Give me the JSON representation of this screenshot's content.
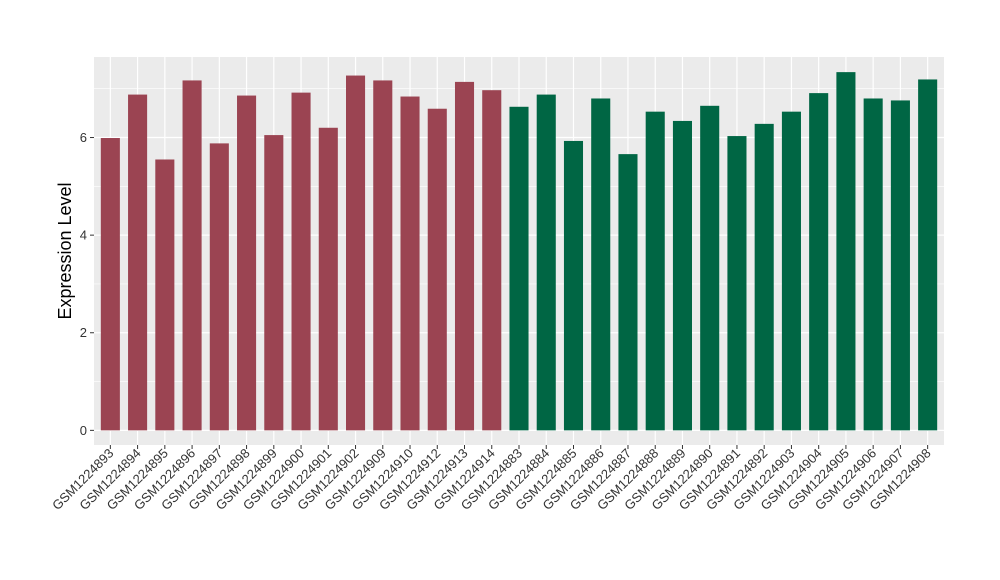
{
  "chart_data": {
    "type": "bar",
    "title": "",
    "xlabel": "",
    "ylabel": "Expression Level",
    "ylim": [
      -0.3,
      7.65
    ],
    "yticks": [
      0,
      2,
      4,
      6
    ],
    "grid": true,
    "background": "#EBEBEB",
    "gridline_color": "#FFFFFF",
    "categories": [
      "GSM1224893",
      "GSM1224894",
      "GSM1224895",
      "GSM1224896",
      "GSM1224897",
      "GSM1224898",
      "GSM1224899",
      "GSM1224900",
      "GSM1224901",
      "GSM1224902",
      "GSM1224909",
      "GSM1224910",
      "GSM1224912",
      "GSM1224913",
      "GSM1224914",
      "GSM1224883",
      "GSM1224884",
      "GSM1224885",
      "GSM1224886",
      "GSM1224887",
      "GSM1224888",
      "GSM1224889",
      "GSM1224890",
      "GSM1224891",
      "GSM1224892",
      "GSM1224903",
      "GSM1224904",
      "GSM1224905",
      "GSM1224906",
      "GSM1224907",
      "GSM1224908"
    ],
    "values": [
      5.99,
      6.88,
      5.55,
      7.17,
      5.88,
      6.86,
      6.05,
      6.92,
      6.2,
      7.27,
      7.17,
      6.84,
      6.59,
      7.14,
      6.97,
      6.63,
      6.88,
      5.93,
      6.8,
      5.66,
      6.53,
      6.34,
      6.65,
      6.03,
      6.28,
      6.53,
      6.91,
      7.34,
      6.8,
      6.76,
      7.19
    ],
    "groups": [
      "a",
      "a",
      "a",
      "a",
      "a",
      "a",
      "a",
      "a",
      "a",
      "a",
      "a",
      "a",
      "a",
      "a",
      "a",
      "b",
      "b",
      "b",
      "b",
      "b",
      "b",
      "b",
      "b",
      "b",
      "b",
      "b",
      "b",
      "b",
      "b",
      "b",
      "b"
    ],
    "group_colors": {
      "a": "#9B4452",
      "b": "#006644"
    }
  }
}
